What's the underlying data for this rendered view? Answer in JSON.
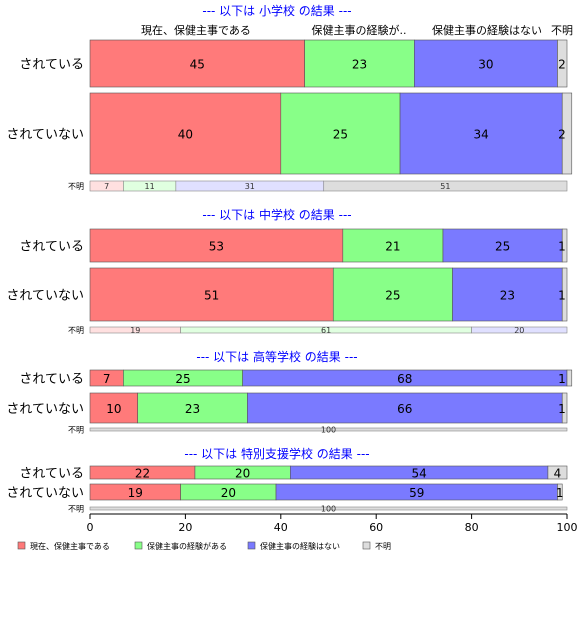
{
  "chart_data": {
    "type": "bar",
    "orientation": "horizontal",
    "stacked": true,
    "percent": true,
    "column_headers": [
      "現在、保健主事である",
      "保健主事の経験が..",
      "保健主事の経験はない",
      "不明"
    ],
    "legend": {
      "position": "bottom-left",
      "items": [
        "現在、保健主事である",
        "保健主事の経験がある",
        "保健主事の経験はない",
        "不明"
      ]
    },
    "colors": [
      "#ff7a7a",
      "#88ff88",
      "#7a7aff",
      "#dddddd"
    ],
    "unknown_row_colors": [
      "#ffe0e0",
      "#e0ffe0",
      "#e0e0ff",
      "#dddddd"
    ],
    "xaxis": {
      "ticks": [
        0,
        20,
        40,
        60,
        80,
        100
      ],
      "xlim": [
        0,
        100
      ]
    },
    "groups": [
      {
        "title": "--- 以下は 小学校 の結果 ---",
        "rows": [
          {
            "label": "されている",
            "values": [
              45,
              23,
              30,
              2
            ]
          },
          {
            "label": "されていない",
            "values": [
              40,
              25,
              34,
              2
            ]
          }
        ],
        "unknown_row": {
          "label": "不明",
          "values": [
            7,
            11,
            31,
            51
          ]
        }
      },
      {
        "title": "--- 以下は 中学校 の結果 ---",
        "rows": [
          {
            "label": "されている",
            "values": [
              53,
              21,
              25,
              1
            ]
          },
          {
            "label": "されていない",
            "values": [
              51,
              25,
              23,
              1
            ]
          }
        ],
        "unknown_row": {
          "label": "不明",
          "values": [
            19,
            61,
            20,
            0
          ]
        }
      },
      {
        "title": "--- 以下は 高等学校 の結果 ---",
        "rows": [
          {
            "label": "されている",
            "values": [
              7,
              25,
              68,
              1
            ]
          },
          {
            "label": "されていない",
            "values": [
              10,
              23,
              66,
              1
            ]
          }
        ],
        "unknown_row": {
          "label": "不明",
          "values": [
            0,
            0,
            0,
            100
          ]
        }
      },
      {
        "title": "--- 以下は 特別支援学校 の結果 ---",
        "rows": [
          {
            "label": "されている",
            "values": [
              22,
              20,
              54,
              4
            ]
          },
          {
            "label": "されていない",
            "values": [
              19,
              20,
              59,
              1
            ]
          }
        ],
        "unknown_row": {
          "label": "不明",
          "values": [
            0,
            0,
            0,
            100
          ]
        }
      }
    ]
  }
}
